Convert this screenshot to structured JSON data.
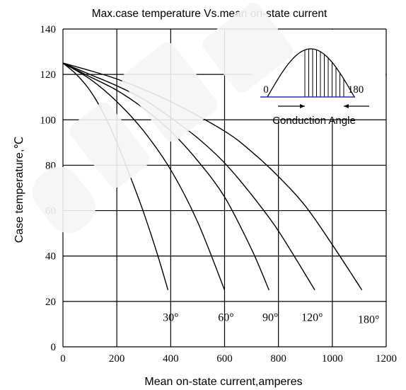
{
  "chart_data": {
    "type": "line",
    "title": "Max.case temperature Vs.mean on-state current",
    "xlabel": "Mean on-state current,amperes",
    "ylabel": "Case temperature,℃",
    "xlim": [
      0,
      1200
    ],
    "ylim": [
      0,
      140
    ],
    "x_ticks": [
      0,
      200,
      400,
      600,
      800,
      1000,
      1200
    ],
    "y_ticks": [
      0,
      20,
      40,
      60,
      80,
      100,
      120,
      140
    ],
    "grid": true,
    "series": [
      {
        "name": "30°",
        "x": [
          0,
          50,
          100,
          150,
          200,
          250,
          300,
          350,
          390
        ],
        "y": [
          125,
          120,
          113,
          103,
          90,
          75,
          59,
          41,
          25
        ]
      },
      {
        "name": "60°",
        "x": [
          0,
          100,
          200,
          300,
          400,
          500,
          600
        ],
        "y": [
          125,
          118,
          108,
          95,
          78,
          55,
          25
        ]
      },
      {
        "name": "90°",
        "x": [
          0,
          100,
          200,
          300,
          400,
          500,
          600,
          700,
          765
        ],
        "y": [
          125,
          119,
          113,
          105,
          95,
          82,
          66,
          43,
          25
        ]
      },
      {
        "name": "120°",
        "x": [
          0,
          100,
          200,
          300,
          400,
          500,
          600,
          700,
          800,
          935
        ],
        "y": [
          125,
          120,
          115,
          109,
          101,
          92,
          81,
          67,
          51,
          25
        ]
      },
      {
        "name": "180°",
        "x": [
          0,
          200,
          400,
          600,
          700,
          800,
          900,
          1000,
          1110
        ],
        "y": [
          125,
          118,
          108,
          95,
          86,
          75,
          62,
          45,
          25
        ]
      }
    ],
    "series_labels": [
      {
        "text": "30°",
        "x": 400,
        "y": 13
      },
      {
        "text": "60°",
        "x": 605,
        "y": 13
      },
      {
        "text": "90°",
        "x": 770,
        "y": 13
      },
      {
        "text": "120°",
        "x": 925,
        "y": 13
      },
      {
        "text": "180°",
        "x": 1135,
        "y": 12
      }
    ],
    "inset": {
      "label_left": "0",
      "label_right": "180",
      "caption": "Conduction Angle"
    }
  }
}
